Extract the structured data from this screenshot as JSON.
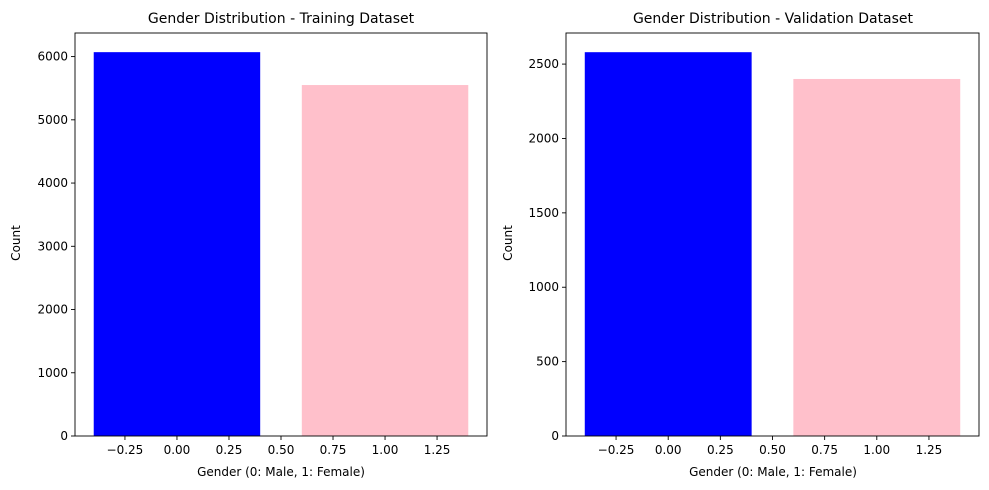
{
  "chart_data": [
    {
      "type": "bar",
      "title": "Gender Distribution - Training Dataset",
      "xlabel": "Gender (0: Male, 1: Female)",
      "ylabel": "Count",
      "x": [
        0,
        1
      ],
      "values": [
        6070,
        5550
      ],
      "colors": [
        "#0000ff",
        "#ffc0cb"
      ],
      "bar_width": 0.8,
      "xlim": [
        -0.49,
        1.49
      ],
      "ylim": [
        0,
        6373
      ],
      "xticks": [
        -0.25,
        0.0,
        0.25,
        0.5,
        0.75,
        1.0,
        1.25
      ],
      "xtick_labels": [
        "−0.25",
        "0.00",
        "0.25",
        "0.50",
        "0.75",
        "1.00",
        "1.25"
      ],
      "yticks": [
        0,
        1000,
        2000,
        3000,
        4000,
        5000,
        6000
      ],
      "ytick_labels": [
        "0",
        "1000",
        "2000",
        "3000",
        "4000",
        "5000",
        "6000"
      ],
      "grid": false
    },
    {
      "type": "bar",
      "title": "Gender Distribution - Validation Dataset",
      "xlabel": "Gender (0: Male, 1: Female)",
      "ylabel": "Count",
      "x": [
        0,
        1
      ],
      "values": [
        2580,
        2400
      ],
      "colors": [
        "#0000ff",
        "#ffc0cb"
      ],
      "bar_width": 0.8,
      "xlim": [
        -0.49,
        1.49
      ],
      "ylim": [
        0,
        2709
      ],
      "xticks": [
        -0.25,
        0.0,
        0.25,
        0.5,
        0.75,
        1.0,
        1.25
      ],
      "xtick_labels": [
        "−0.25",
        "0.00",
        "0.25",
        "0.50",
        "0.75",
        "1.00",
        "1.25"
      ],
      "yticks": [
        0,
        500,
        1000,
        1500,
        2000,
        2500
      ],
      "ytick_labels": [
        "0",
        "500",
        "1000",
        "1500",
        "2000",
        "2500"
      ],
      "grid": false
    }
  ]
}
